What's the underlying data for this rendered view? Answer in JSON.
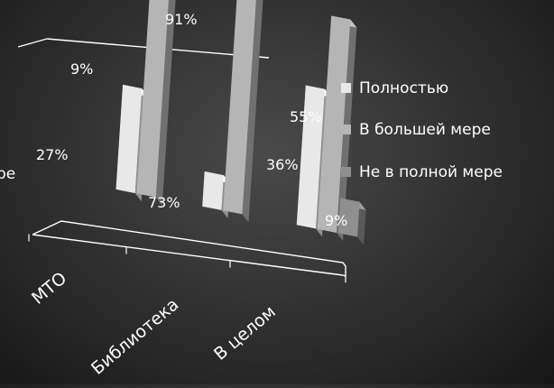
{
  "chart_data": {
    "type": "bar",
    "categories": [
      "МТО",
      "Библиотека",
      "В целом"
    ],
    "series": [
      {
        "name": "Полностью",
        "values": [
          27,
          9,
          36
        ]
      },
      {
        "name": "В большей мере",
        "values": [
          73,
          91,
          55
        ]
      },
      {
        "name": "Не в полной мере",
        "values": [
          0,
          0,
          9
        ]
      }
    ],
    "data_labels": [
      [
        "27%",
        "9%",
        "36%"
      ],
      [
        "73%",
        "91%",
        "55%"
      ],
      [
        "",
        "",
        "9%"
      ]
    ],
    "cut_off_text": "ре",
    "ylim": [
      0,
      100
    ],
    "legend_position": "right",
    "grid": false,
    "view": "3d",
    "colors": {
      "background": "#2e2e2e",
      "text": "#ffffff",
      "axis": "#ffffff",
      "series": [
        "#e8e8e8",
        "#b5b5b5",
        "#8f8f8f"
      ]
    }
  }
}
